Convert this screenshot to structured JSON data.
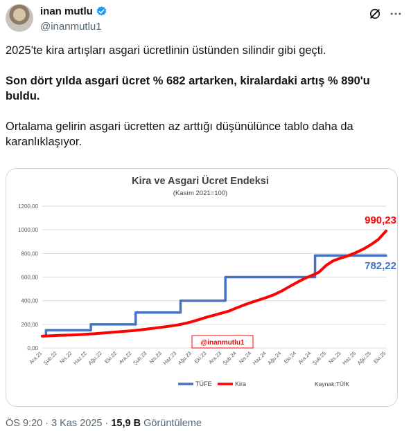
{
  "author": {
    "name": "inan mutlu",
    "handle": "@inanmutlu1"
  },
  "tweet": {
    "p1": "2025'te kira artışları asgari ücretlinin üstünden silindir gibi geçti.",
    "p2": "Son dört yılda asgari ücret % 682 artarken, kiralardaki artış % 890'u buldu.",
    "p3": "Ortalama gelirin asgari ücretten az arttığı düşünülünce tablo daha da karanlıklaşıyor."
  },
  "meta": {
    "time": "ÖS 9:20",
    "date": "3 Kas 2025",
    "views": "15,9 B",
    "views_label": "Görüntüleme"
  },
  "colors": {
    "tufe": "#4472c4",
    "kira": "#ff0000",
    "accent": "#1d9bf0"
  },
  "chart_data": {
    "type": "line",
    "title": "Kira ve Asgari Ücret Endeksi",
    "subtitle": "(Kasım 2021=100)",
    "ylim": [
      0,
      1200
    ],
    "y_ticks": [
      "0,00",
      "200,00",
      "400,00",
      "600,00",
      "800,00",
      "1000,00",
      "1200,00"
    ],
    "x_tick_labels": [
      "Ara.21",
      "Şub.22",
      "Nis.22",
      "Haz.22",
      "Ağu.22",
      "Eki.22",
      "Ara.22",
      "Şub.23",
      "Nis.23",
      "Haz.23",
      "Ağu.23",
      "Eki.23",
      "Ara.23",
      "Şub.24",
      "Nis.24",
      "Haz.24",
      "Ağu.24",
      "Eki.24",
      "Ara.24",
      "Şub.25",
      "Nis.25",
      "Haz.25",
      "Ağu.25",
      "Eki.25"
    ],
    "x": [
      "Ara.21",
      "Oca.22",
      "Şub.22",
      "Mar.22",
      "Nis.22",
      "May.22",
      "Haz.22",
      "Tem.22",
      "Ağu.22",
      "Eyl.22",
      "Eki.22",
      "Kas.22",
      "Ara.22",
      "Oca.23",
      "Şub.23",
      "Mar.23",
      "Nis.23",
      "May.23",
      "Haz.23",
      "Tem.23",
      "Ağu.23",
      "Eyl.23",
      "Eki.23",
      "Kas.23",
      "Ara.23",
      "Oca.24",
      "Şub.24",
      "Mar.24",
      "Nis.24",
      "May.24",
      "Haz.24",
      "Tem.24",
      "Ağu.24",
      "Eyl.24",
      "Eki.24",
      "Kas.24",
      "Ara.24",
      "Oca.25",
      "Şub.25",
      "Mar.25",
      "Nis.25",
      "May.25",
      "Haz.25",
      "Tem.25",
      "Ağu.25",
      "Eyl.25",
      "Eki.25"
    ],
    "series": [
      {
        "name": "TÜFE",
        "step": true,
        "values": [
          100,
          150,
          150,
          150,
          150,
          150,
          150,
          200,
          200,
          200,
          200,
          200,
          200,
          300,
          300,
          300,
          300,
          300,
          300,
          400,
          400,
          400,
          400,
          400,
          400,
          600,
          600,
          600,
          600,
          600,
          600,
          600,
          600,
          600,
          600,
          600,
          600,
          782.22,
          782.22,
          782.22,
          782.22,
          782.22,
          782.22,
          782.22,
          782.22,
          782.22,
          782.22
        ]
      },
      {
        "name": "Kira",
        "step": false,
        "values": [
          100,
          103,
          106,
          108,
          110,
          113,
          117,
          121,
          126,
          131,
          136,
          141,
          146,
          152,
          160,
          168,
          176,
          184,
          194,
          206,
          222,
          241,
          261,
          278,
          295,
          313,
          339,
          364,
          386,
          407,
          427,
          451,
          481,
          517,
          552,
          585,
          612,
          640,
          700,
          740,
          762,
          782,
          808,
          838,
          875,
          920,
          990.23
        ]
      }
    ],
    "end_labels": {
      "tufe": "782,22",
      "kira": "990,23"
    },
    "watermark": "@inanmutlu1",
    "source": "Kaynak:TÜİK",
    "legend": "bottom"
  }
}
